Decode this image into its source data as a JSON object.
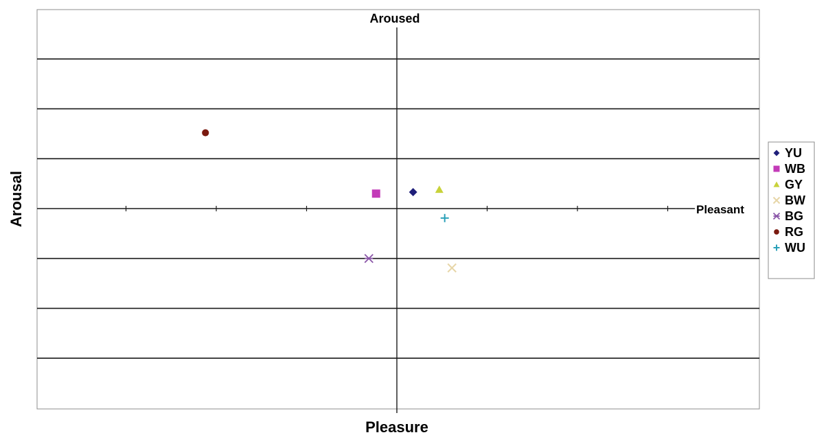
{
  "chart_data": {
    "type": "scatter",
    "title": "",
    "xlabel": "Pleasure",
    "ylabel": "Arousal",
    "x_axis_end_label": "Pleasant",
    "y_axis_end_label": "Aroused",
    "xlim": [
      -4,
      4
    ],
    "ylim": [
      -4,
      4
    ],
    "x_tick_step": 1,
    "y_gridline_step": 1,
    "grid": "horizontal",
    "legend_position": "right",
    "series": [
      {
        "name": "YU",
        "marker": "diamond",
        "color": "#1f1f7a",
        "x": 0.18,
        "y": 0.33
      },
      {
        "name": "WB",
        "marker": "square",
        "color": "#c33bb8",
        "x": -0.23,
        "y": 0.3
      },
      {
        "name": "GY",
        "marker": "triangle",
        "color": "#c8d23a",
        "x": 0.47,
        "y": 0.38
      },
      {
        "name": "BW",
        "marker": "x",
        "color": "#e7d6a8",
        "x": 0.61,
        "y": -1.19
      },
      {
        "name": "BG",
        "marker": "star",
        "color": "#8a55a8",
        "x": -0.31,
        "y": -1.0
      },
      {
        "name": "RG",
        "marker": "circle",
        "color": "#7a1a10",
        "x": -2.12,
        "y": 1.52
      },
      {
        "name": "WU",
        "marker": "plus",
        "color": "#2aa0b8",
        "x": 0.53,
        "y": -0.19
      }
    ]
  }
}
